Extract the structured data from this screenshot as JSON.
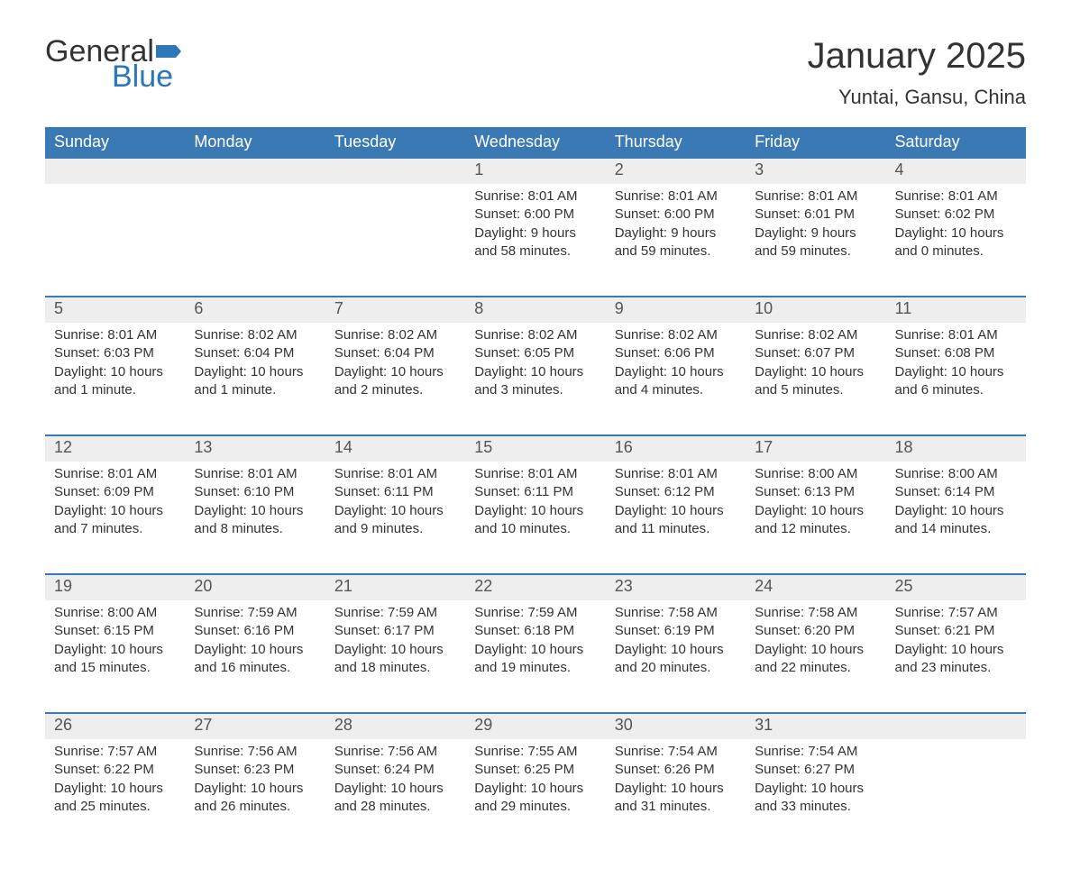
{
  "logo": {
    "text1": "General",
    "text2": "Blue",
    "flag_color": "#2b77b8"
  },
  "title": "January 2025",
  "location": "Yuntai, Gansu, China",
  "colors": {
    "header_bg": "#3b79b4",
    "header_text": "#ffffff",
    "daynum_bg": "#eeeeee",
    "daynum_border": "#3b79b4",
    "body_text": "#333333",
    "page_bg": "#ffffff"
  },
  "weekdays": [
    "Sunday",
    "Monday",
    "Tuesday",
    "Wednesday",
    "Thursday",
    "Friday",
    "Saturday"
  ],
  "weeks": [
    [
      null,
      null,
      null,
      {
        "n": "1",
        "sr": "8:01 AM",
        "ss": "6:00 PM",
        "dl": "9 hours and 58 minutes."
      },
      {
        "n": "2",
        "sr": "8:01 AM",
        "ss": "6:00 PM",
        "dl": "9 hours and 59 minutes."
      },
      {
        "n": "3",
        "sr": "8:01 AM",
        "ss": "6:01 PM",
        "dl": "9 hours and 59 minutes."
      },
      {
        "n": "4",
        "sr": "8:01 AM",
        "ss": "6:02 PM",
        "dl": "10 hours and 0 minutes."
      }
    ],
    [
      {
        "n": "5",
        "sr": "8:01 AM",
        "ss": "6:03 PM",
        "dl": "10 hours and 1 minute."
      },
      {
        "n": "6",
        "sr": "8:02 AM",
        "ss": "6:04 PM",
        "dl": "10 hours and 1 minute."
      },
      {
        "n": "7",
        "sr": "8:02 AM",
        "ss": "6:04 PM",
        "dl": "10 hours and 2 minutes."
      },
      {
        "n": "8",
        "sr": "8:02 AM",
        "ss": "6:05 PM",
        "dl": "10 hours and 3 minutes."
      },
      {
        "n": "9",
        "sr": "8:02 AM",
        "ss": "6:06 PM",
        "dl": "10 hours and 4 minutes."
      },
      {
        "n": "10",
        "sr": "8:02 AM",
        "ss": "6:07 PM",
        "dl": "10 hours and 5 minutes."
      },
      {
        "n": "11",
        "sr": "8:01 AM",
        "ss": "6:08 PM",
        "dl": "10 hours and 6 minutes."
      }
    ],
    [
      {
        "n": "12",
        "sr": "8:01 AM",
        "ss": "6:09 PM",
        "dl": "10 hours and 7 minutes."
      },
      {
        "n": "13",
        "sr": "8:01 AM",
        "ss": "6:10 PM",
        "dl": "10 hours and 8 minutes."
      },
      {
        "n": "14",
        "sr": "8:01 AM",
        "ss": "6:11 PM",
        "dl": "10 hours and 9 minutes."
      },
      {
        "n": "15",
        "sr": "8:01 AM",
        "ss": "6:11 PM",
        "dl": "10 hours and 10 minutes."
      },
      {
        "n": "16",
        "sr": "8:01 AM",
        "ss": "6:12 PM",
        "dl": "10 hours and 11 minutes."
      },
      {
        "n": "17",
        "sr": "8:00 AM",
        "ss": "6:13 PM",
        "dl": "10 hours and 12 minutes."
      },
      {
        "n": "18",
        "sr": "8:00 AM",
        "ss": "6:14 PM",
        "dl": "10 hours and 14 minutes."
      }
    ],
    [
      {
        "n": "19",
        "sr": "8:00 AM",
        "ss": "6:15 PM",
        "dl": "10 hours and 15 minutes."
      },
      {
        "n": "20",
        "sr": "7:59 AM",
        "ss": "6:16 PM",
        "dl": "10 hours and 16 minutes."
      },
      {
        "n": "21",
        "sr": "7:59 AM",
        "ss": "6:17 PM",
        "dl": "10 hours and 18 minutes."
      },
      {
        "n": "22",
        "sr": "7:59 AM",
        "ss": "6:18 PM",
        "dl": "10 hours and 19 minutes."
      },
      {
        "n": "23",
        "sr": "7:58 AM",
        "ss": "6:19 PM",
        "dl": "10 hours and 20 minutes."
      },
      {
        "n": "24",
        "sr": "7:58 AM",
        "ss": "6:20 PM",
        "dl": "10 hours and 22 minutes."
      },
      {
        "n": "25",
        "sr": "7:57 AM",
        "ss": "6:21 PM",
        "dl": "10 hours and 23 minutes."
      }
    ],
    [
      {
        "n": "26",
        "sr": "7:57 AM",
        "ss": "6:22 PM",
        "dl": "10 hours and 25 minutes."
      },
      {
        "n": "27",
        "sr": "7:56 AM",
        "ss": "6:23 PM",
        "dl": "10 hours and 26 minutes."
      },
      {
        "n": "28",
        "sr": "7:56 AM",
        "ss": "6:24 PM",
        "dl": "10 hours and 28 minutes."
      },
      {
        "n": "29",
        "sr": "7:55 AM",
        "ss": "6:25 PM",
        "dl": "10 hours and 29 minutes."
      },
      {
        "n": "30",
        "sr": "7:54 AM",
        "ss": "6:26 PM",
        "dl": "10 hours and 31 minutes."
      },
      {
        "n": "31",
        "sr": "7:54 AM",
        "ss": "6:27 PM",
        "dl": "10 hours and 33 minutes."
      },
      null
    ]
  ],
  "labels": {
    "sunrise": "Sunrise: ",
    "sunset": "Sunset: ",
    "daylight": "Daylight: "
  }
}
